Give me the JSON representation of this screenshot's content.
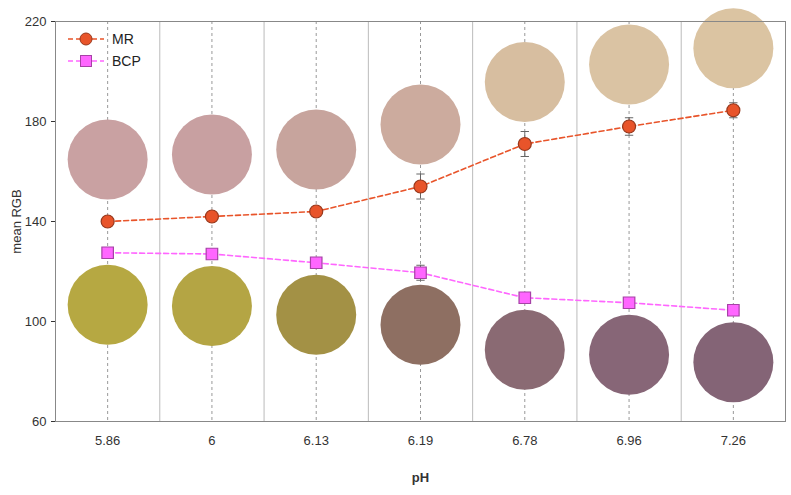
{
  "chart_data": {
    "type": "line",
    "x_label": "pH",
    "y_label": "mean RGB",
    "categories": [
      "5.86",
      "6",
      "6.13",
      "6.19",
      "6.78",
      "6.96",
      "7.26"
    ],
    "ylim": [
      60,
      220
    ],
    "yticks": [
      60,
      100,
      140,
      180,
      220
    ],
    "grid": "x",
    "legend": "upper left",
    "series": [
      {
        "name": "MR",
        "color": "#e8542a",
        "marker": "circle",
        "line_style": "dashed",
        "values": [
          140,
          142,
          144,
          154,
          171,
          178,
          184.5
        ],
        "errors": [
          1.5,
          1.5,
          1.5,
          5,
          5,
          3.5,
          3
        ]
      },
      {
        "name": "BCP",
        "color": "#ff66ff",
        "marker": "square",
        "line_style": "dashed",
        "values": [
          127.5,
          127,
          123.5,
          119.5,
          109.5,
          107.5,
          104.5
        ],
        "errors": [
          1.5,
          1,
          1,
          3,
          2,
          1.5,
          1
        ]
      }
    ]
  }
}
